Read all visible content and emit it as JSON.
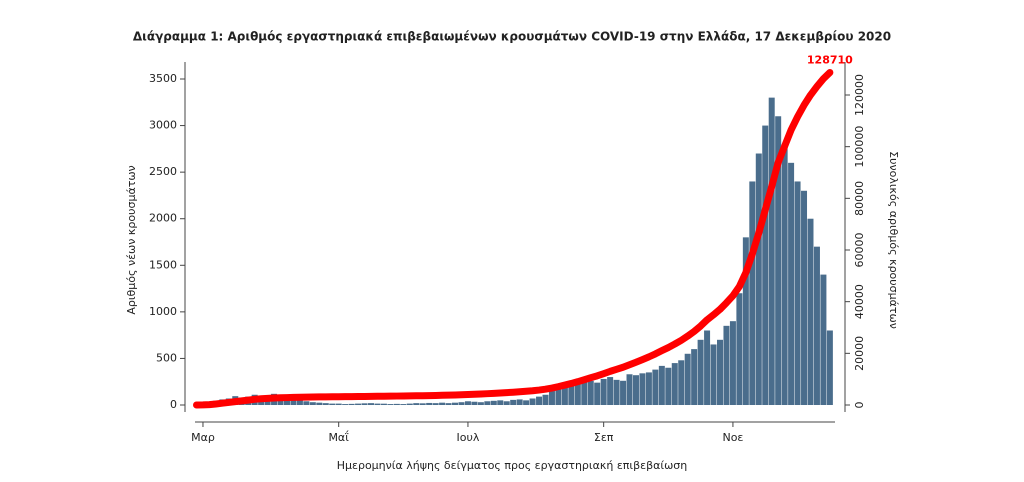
{
  "chart_data": {
    "type": "bar-line",
    "title": "Διάγραμμα 1: Αριθμός εργαστηριακά επιβεβαιωμένων κρουσμάτων COVID-19 στην Ελλάδα, 17 Δεκεμβρίου 2020",
    "x_label": "Ημερομηνία λήψης δείγματος προς εργαστηριακή επιβεβαίωση",
    "y_label": "Αριθμός νέων κρουσμάτων",
    "y2_label": "Συνολικός αριθμός κρουσμάτων",
    "categories": [
      null,
      "Μαρ",
      null,
      null,
      null,
      null,
      null,
      null,
      null,
      null,
      null,
      null,
      null,
      null,
      null,
      null,
      null,
      null,
      null,
      null,
      null,
      null,
      "Μαΐ",
      null,
      null,
      null,
      null,
      null,
      null,
      null,
      null,
      null,
      null,
      null,
      null,
      null,
      null,
      null,
      null,
      null,
      null,
      null,
      "Ιουλ",
      null,
      null,
      null,
      null,
      null,
      null,
      null,
      null,
      null,
      null,
      null,
      null,
      null,
      null,
      null,
      null,
      null,
      null,
      null,
      null,
      "Σεπ",
      null,
      null,
      null,
      null,
      null,
      null,
      null,
      null,
      null,
      null,
      null,
      null,
      null,
      null,
      null,
      null,
      null,
      null,
      null,
      "Νοε",
      null,
      null,
      null,
      null,
      null,
      null,
      null,
      null,
      null,
      null,
      null,
      null,
      null,
      null,
      null
    ],
    "series": [
      {
        "color": "#4a6d8c",
        "values": [
          0,
          5,
          25,
          45,
          60,
          70,
          95,
          80,
          90,
          110,
          100,
          95,
          120,
          80,
          70,
          60,
          50,
          40,
          30,
          25,
          20,
          15,
          15,
          10,
          12,
          15,
          18,
          20,
          15,
          14,
          10,
          12,
          10,
          15,
          20,
          18,
          22,
          20,
          25,
          20,
          25,
          30,
          40,
          35,
          30,
          40,
          45,
          50,
          40,
          55,
          60,
          50,
          70,
          90,
          110,
          150,
          180,
          200,
          210,
          230,
          250,
          260,
          240,
          280,
          300,
          270,
          260,
          330,
          320,
          340,
          350,
          380,
          420,
          400,
          450,
          480,
          550,
          600,
          700,
          800,
          650,
          700,
          850,
          900,
          1200,
          1800,
          2400,
          2700,
          3000,
          3300,
          3100,
          2800,
          2600,
          2400,
          2300,
          2000,
          1700,
          1400,
          800
        ]
      },
      {
        "color": "#ff0000",
        "axis": "y2",
        "values": [
          3,
          30,
          150,
          400,
          700,
          1000,
          1300,
          1600,
          1900,
          2200,
          2400,
          2550,
          2700,
          2800,
          2880,
          2950,
          3000,
          3050,
          3100,
          3130,
          3160,
          3180,
          3200,
          3220,
          3250,
          3280,
          3310,
          3340,
          3370,
          3400,
          3430,
          3460,
          3490,
          3520,
          3560,
          3600,
          3650,
          3700,
          3760,
          3820,
          3890,
          3970,
          4060,
          4160,
          4260,
          4380,
          4510,
          4650,
          4790,
          4950,
          5130,
          5310,
          5520,
          5790,
          6120,
          6570,
          7110,
          7710,
          8340,
          9030,
          9780,
          10560,
          11280,
          12120,
          13020,
          13830,
          14610,
          15600,
          16560,
          17580,
          18630,
          19770,
          21030,
          22230,
          23580,
          25020,
          26670,
          28470,
          30570,
          32970,
          34920,
          37020,
          39570,
          42270,
          45870,
          51270,
          58470,
          66570,
          75570,
          84570,
          93870,
          100170,
          106470,
          111570,
          116070,
          119970,
          123270,
          126270,
          128710
        ]
      }
    ],
    "ylim": [
      -161,
      3704
    ],
    "yticks": [
      0,
      500,
      1000,
      1500,
      2000,
      2500,
      3000,
      3500
    ],
    "y2lim": [
      -5806,
      133548
    ],
    "y2ticks": [
      0,
      20000,
      40000,
      60000,
      80000,
      100000,
      120000
    ]
  }
}
